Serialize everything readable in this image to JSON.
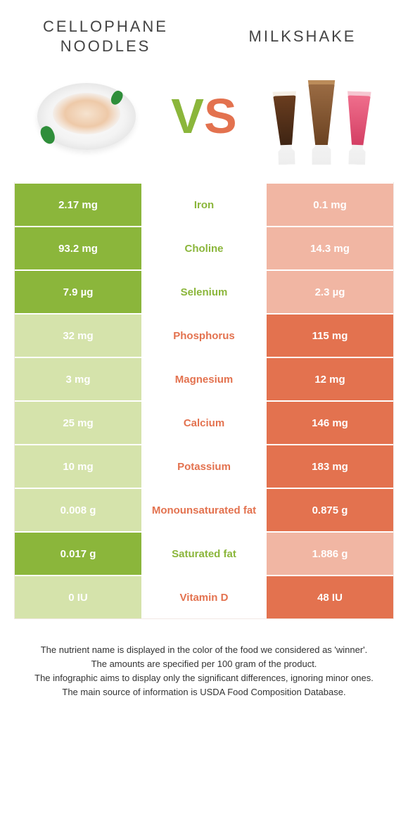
{
  "header": {
    "left_title_line1": "CELLOPHANE",
    "left_title_line2": "NOODLES",
    "right_title": "MILKSHAKE",
    "vs_v": "V",
    "vs_s": "S"
  },
  "colors": {
    "left_win": "#8bb63b",
    "left_lose": "#d5e3ab",
    "right_win": "#e3724f",
    "right_lose": "#f1b6a3",
    "mid_green": "#8bb63b",
    "mid_orange": "#e3724f"
  },
  "rows": [
    {
      "nutrient": "Iron",
      "left": "2.17 mg",
      "right": "0.1 mg",
      "winner": "left"
    },
    {
      "nutrient": "Choline",
      "left": "93.2 mg",
      "right": "14.3 mg",
      "winner": "left"
    },
    {
      "nutrient": "Selenium",
      "left": "7.9 µg",
      "right": "2.3 µg",
      "winner": "left"
    },
    {
      "nutrient": "Phosphorus",
      "left": "32 mg",
      "right": "115 mg",
      "winner": "right"
    },
    {
      "nutrient": "Magnesium",
      "left": "3 mg",
      "right": "12 mg",
      "winner": "right"
    },
    {
      "nutrient": "Calcium",
      "left": "25 mg",
      "right": "146 mg",
      "winner": "right"
    },
    {
      "nutrient": "Potassium",
      "left": "10 mg",
      "right": "183 mg",
      "winner": "right"
    },
    {
      "nutrient": "Monounsaturated fat",
      "left": "0.008 g",
      "right": "0.875 g",
      "winner": "right"
    },
    {
      "nutrient": "Saturated fat",
      "left": "0.017 g",
      "right": "1.886 g",
      "winner": "left"
    },
    {
      "nutrient": "Vitamin D",
      "left": "0 IU",
      "right": "48 IU",
      "winner": "right"
    }
  ],
  "footer": {
    "line1": "The nutrient name is displayed in the color of the food we considered as 'winner'.",
    "line2": "The amounts are specified per 100 gram of the product.",
    "line3": "The infographic aims to display only the significant differences, ignoring minor ones.",
    "line4": "The main source of information is USDA Food Composition Database."
  }
}
